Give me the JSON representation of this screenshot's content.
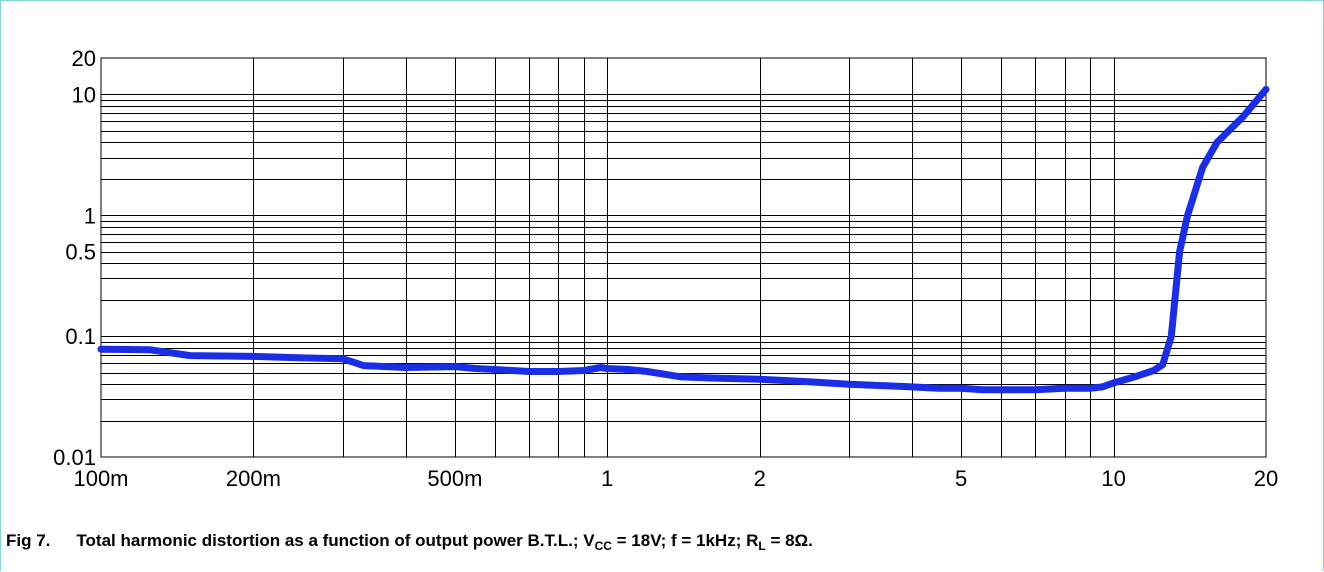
{
  "figure": {
    "label": "Fig 7.",
    "caption_segments": [
      {
        "t": "Total harmonic distortion as a function of output power B.T.L.; V"
      },
      {
        "t": "CC",
        "sub": true
      },
      {
        "t": " = 18V; f = 1kHz; R"
      },
      {
        "t": "L",
        "sub": true
      },
      {
        "t": " = 8Ω."
      }
    ]
  },
  "chart_data": {
    "type": "line",
    "x_scale": "log",
    "y_scale": "log",
    "xlim": [
      0.1,
      20
    ],
    "ylim": [
      0.01,
      20
    ],
    "x_ticks": [
      {
        "value": 0.1,
        "label": "100m"
      },
      {
        "value": 0.2,
        "label": "200m"
      },
      {
        "value": 0.5,
        "label": "500m"
      },
      {
        "value": 1,
        "label": "1"
      },
      {
        "value": 2,
        "label": "2"
      },
      {
        "value": 5,
        "label": "5"
      },
      {
        "value": 10,
        "label": "10"
      },
      {
        "value": 20,
        "label": "20"
      }
    ],
    "y_ticks": [
      {
        "value": 0.01,
        "label": "0.01"
      },
      {
        "value": 0.1,
        "label": "0.1"
      },
      {
        "value": 0.5,
        "label": "0.5"
      },
      {
        "value": 1,
        "label": "1"
      },
      {
        "value": 10,
        "label": "10"
      },
      {
        "value": 20,
        "label": "20"
      }
    ],
    "grid": true,
    "line_color": "#1a2ee8",
    "series": [
      {
        "x": [
          0.1,
          0.125,
          0.15,
          0.2,
          0.25,
          0.3,
          0.33,
          0.4,
          0.5,
          0.55,
          0.6,
          0.7,
          0.8,
          0.9,
          0.97,
          1.0,
          1.1,
          1.2,
          1.4,
          1.6,
          2.0,
          2.5,
          3.0,
          3.5,
          4.0,
          4.5,
          5.0,
          5.5,
          6.0,
          7.0,
          8.0,
          9.0,
          9.5,
          10.0,
          11.0,
          12.0,
          12.5,
          13.0,
          13.5,
          14.0,
          15.0,
          16.0,
          18.0,
          20.0
        ],
        "y": [
          0.078,
          0.077,
          0.069,
          0.068,
          0.066,
          0.065,
          0.057,
          0.055,
          0.056,
          0.054,
          0.053,
          0.051,
          0.051,
          0.052,
          0.055,
          0.054,
          0.053,
          0.051,
          0.046,
          0.045,
          0.044,
          0.042,
          0.04,
          0.039,
          0.038,
          0.037,
          0.037,
          0.036,
          0.036,
          0.036,
          0.037,
          0.037,
          0.038,
          0.041,
          0.046,
          0.052,
          0.058,
          0.1,
          0.5,
          1.0,
          2.5,
          4.0,
          6.5,
          11.0
        ]
      }
    ]
  }
}
